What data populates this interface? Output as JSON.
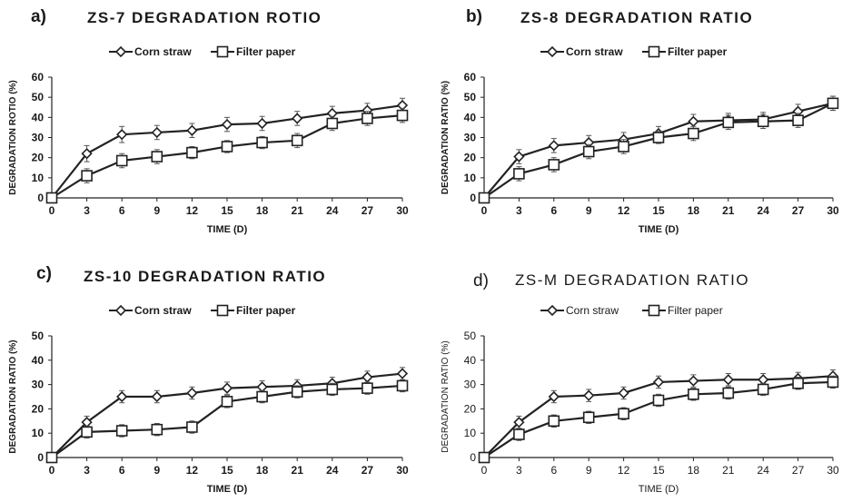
{
  "panels": [
    {
      "letter": "a)",
      "title": "ZS-7 DEGRADATION ROTIO"
    },
    {
      "letter": "b)",
      "title": "ZS-8 DEGRADATION RATIO"
    },
    {
      "letter": "c)",
      "title": "ZS-10 DEGRADATION RATIO"
    },
    {
      "letter": "d)",
      "title": "ZS-M DEGRADATION RATIO"
    }
  ],
  "chart_data": [
    {
      "type": "line",
      "title": "ZS-7 DEGRADATION ROTIO",
      "xlabel": "TIME (D)",
      "ylabel": "DEGRADATION ROTIO (%)",
      "x": [
        0,
        3,
        6,
        9,
        12,
        15,
        18,
        21,
        24,
        27,
        30
      ],
      "xlim": [
        0,
        30
      ],
      "ylim": [
        0,
        60
      ],
      "yticks": [
        0,
        10,
        20,
        30,
        40,
        50,
        60
      ],
      "grid": false,
      "legend": "top-center",
      "series": [
        {
          "name": "Corn straw",
          "marker": "diamond",
          "values": [
            0,
            22,
            31.5,
            32.5,
            33.5,
            36.5,
            37,
            39.5,
            42,
            43.5,
            46
          ],
          "errors": [
            0,
            4,
            4,
            3.5,
            3.5,
            3.5,
            3.5,
            3.5,
            3.5,
            3.5,
            3.5
          ]
        },
        {
          "name": "Filter paper",
          "marker": "square",
          "values": [
            0,
            11,
            18.5,
            20.5,
            22.5,
            25.5,
            27.5,
            28.5,
            37,
            39.5,
            41
          ],
          "errors": [
            0,
            3.5,
            3.5,
            3.5,
            3,
            3,
            3,
            3.5,
            3.5,
            3.5,
            3.5
          ]
        }
      ]
    },
    {
      "type": "line",
      "title": "ZS-8 DEGRADATION RATIO",
      "xlabel": "TIME (D)",
      "ylabel": "DEGRADATION RATIO (%)",
      "x": [
        0,
        3,
        6,
        9,
        12,
        15,
        18,
        21,
        24,
        27,
        30
      ],
      "xlim": [
        0,
        30
      ],
      "ylim": [
        0,
        60
      ],
      "yticks": [
        0,
        10,
        20,
        30,
        40,
        50,
        60
      ],
      "grid": false,
      "legend": "top-center",
      "series": [
        {
          "name": "Corn straw",
          "marker": "diamond",
          "values": [
            0,
            20.5,
            26,
            27.5,
            29,
            32,
            38,
            38.5,
            39,
            43,
            47
          ],
          "errors": [
            0,
            3.5,
            3.5,
            3.5,
            3.5,
            3.5,
            3.5,
            3.5,
            3.5,
            3.5,
            3.5
          ]
        },
        {
          "name": "Filter paper",
          "marker": "square",
          "values": [
            0,
            12,
            16.5,
            23,
            25.5,
            30,
            32,
            37.5,
            38,
            38.5,
            47
          ],
          "errors": [
            0,
            3.5,
            3.5,
            3.5,
            3.5,
            3,
            3.5,
            3.5,
            3.5,
            3.5,
            3.5
          ]
        }
      ]
    },
    {
      "type": "line",
      "title": "ZS-10 DEGRADATION RATIO",
      "xlabel": "TIME (D)",
      "ylabel": "DEGRADATION RATIO (%)",
      "x": [
        0,
        3,
        6,
        9,
        12,
        15,
        18,
        21,
        24,
        27,
        30
      ],
      "xlim": [
        0,
        30
      ],
      "ylim": [
        0,
        50
      ],
      "yticks": [
        0,
        10,
        20,
        30,
        40,
        50
      ],
      "grid": false,
      "legend": "top-center",
      "series": [
        {
          "name": "Corn straw",
          "marker": "diamond",
          "values": [
            0,
            14.5,
            25,
            25,
            26.5,
            28.5,
            29,
            29.5,
            30.5,
            33,
            34.5
          ],
          "errors": [
            0,
            2.5,
            2.5,
            2.5,
            2.5,
            2.5,
            2.5,
            2.5,
            2.5,
            2.5,
            2.5
          ]
        },
        {
          "name": "Filter paper",
          "marker": "square",
          "values": [
            0,
            10.5,
            11,
            11.5,
            12.5,
            23,
            25,
            27,
            28,
            28.5,
            29.5
          ],
          "errors": [
            0,
            2.5,
            2.5,
            2.5,
            2.5,
            2.5,
            2.5,
            2.5,
            2.5,
            2.5,
            2.5
          ]
        }
      ]
    },
    {
      "type": "line",
      "title": "ZS-M DEGRADATION RATIO",
      "xlabel": "TIME (D)",
      "ylabel": "DEGRADATION RATIO (%)",
      "x": [
        0,
        3,
        6,
        9,
        12,
        15,
        18,
        21,
        24,
        27,
        30
      ],
      "xlim": [
        0,
        30
      ],
      "ylim": [
        0,
        50
      ],
      "yticks": [
        0,
        10,
        20,
        30,
        40,
        50
      ],
      "grid": false,
      "legend": "top-center",
      "series": [
        {
          "name": "Corn straw",
          "marker": "diamond",
          "values": [
            0,
            14.5,
            25,
            25.5,
            26.5,
            31,
            31.5,
            32,
            32,
            32.5,
            33.5
          ],
          "errors": [
            0,
            2.5,
            2.5,
            2.5,
            2.5,
            2.5,
            2.5,
            2.5,
            2.5,
            2.5,
            2.5
          ]
        },
        {
          "name": "Filter paper",
          "marker": "square",
          "values": [
            0,
            9.5,
            15,
            16.5,
            18,
            23.5,
            26,
            26.5,
            28,
            30.5,
            31
          ],
          "errors": [
            0,
            2.5,
            2.5,
            2.5,
            2.5,
            2.5,
            2.5,
            2.5,
            2.5,
            2.5,
            2.5
          ]
        }
      ]
    }
  ]
}
